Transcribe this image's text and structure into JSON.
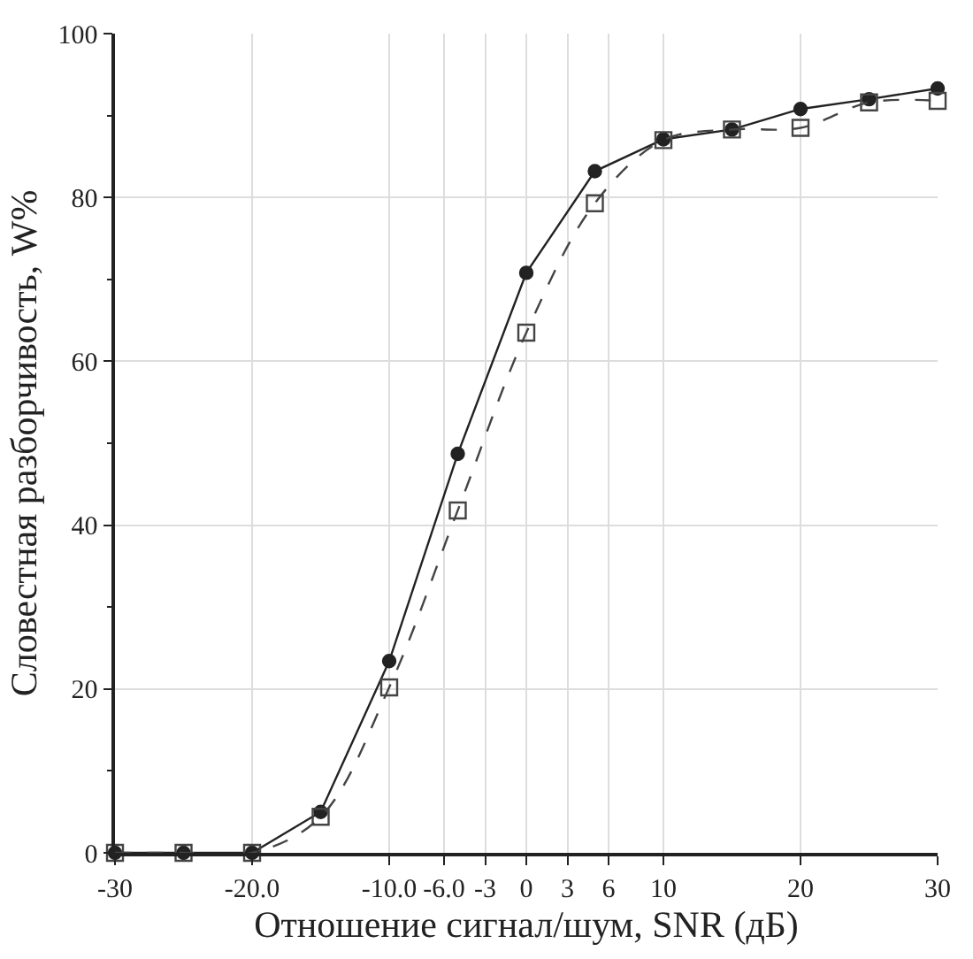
{
  "chart_data": {
    "type": "line",
    "xlabel": "Отношение сигнал/шум, SNR (дБ)",
    "ylabel": "Словестная разборчивость, W%",
    "x": [
      -30,
      -25,
      -20,
      -15,
      -10,
      -5,
      0,
      5,
      10,
      15,
      20,
      25,
      30
    ],
    "series": [
      {
        "color": "#222222",
        "marker": "circle",
        "line_style": "solid",
        "values": [
          0,
          0,
          0,
          5.0,
          23.4,
          48.7,
          70.8,
          83.2,
          87.1,
          88.3,
          90.8,
          92.0,
          93.3
        ]
      },
      {
        "color": "#444444",
        "marker": "square",
        "line_style": "dashed",
        "values": [
          0,
          0,
          0,
          4.4,
          20.2,
          41.8,
          63.5,
          79.3,
          87.0,
          88.3,
          88.5,
          91.6,
          91.8
        ]
      }
    ],
    "xlim": [
      -30,
      30
    ],
    "ylim": [
      0,
      100
    ],
    "xticks": [
      -30,
      {
        "value": -20,
        "label": "-20.0"
      },
      {
        "value": -10,
        "label": "-10.0"
      },
      {
        "value": -6,
        "label": "-6.0"
      },
      -3,
      0,
      3,
      6,
      10,
      20,
      30
    ],
    "yticks": [
      0,
      20,
      40,
      60,
      80,
      100
    ],
    "grid": true,
    "legend": false
  }
}
